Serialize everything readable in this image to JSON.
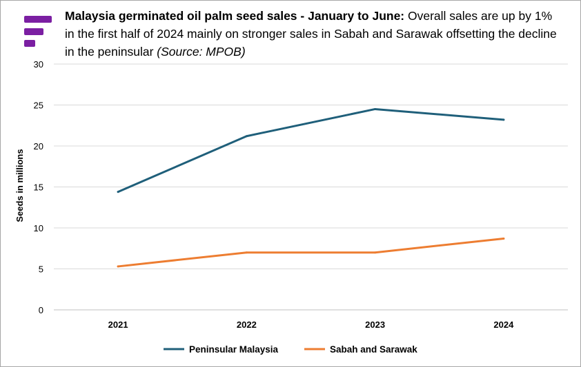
{
  "title": {
    "bold": "Malaysia germinated oil palm seed sales - January to June:",
    "normal": " Overall sales are up by 1% in the first half of 2024 mainly on stronger sales in Sabah and Sarawak offsetting the decline in the peninsular ",
    "source": "(Source: MPOB)"
  },
  "logo": {
    "icon": "brand-logo-icon",
    "color": "#7b1fa2"
  },
  "chart_data": {
    "type": "line",
    "categories": [
      "2021",
      "2022",
      "2023",
      "2024"
    ],
    "series": [
      {
        "name": "Peninsular Malaysia",
        "values": [
          14.4,
          21.2,
          24.5,
          23.2
        ],
        "color": "#1f5f7a"
      },
      {
        "name": "Sabah and Sarawak",
        "values": [
          5.3,
          7.0,
          7.0,
          8.7
        ],
        "color": "#ed7d31"
      }
    ],
    "ylabel": "Seeds in millions",
    "ylim": [
      0,
      30
    ],
    "yticks": [
      "0",
      "5",
      "10",
      "15",
      "20",
      "25",
      "30"
    ],
    "grid": true,
    "legend": "bottom"
  }
}
